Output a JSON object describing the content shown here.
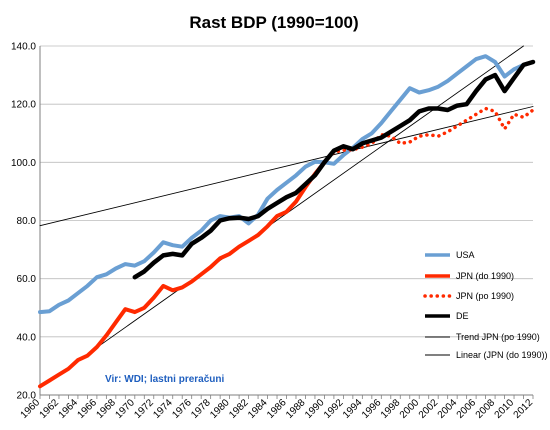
{
  "chart_data": {
    "type": "line",
    "title": "Rast BDP (1990=100)",
    "source_note": "Vir: WDI; lastni preračuni",
    "ylim": [
      20,
      140
    ],
    "yticks": [
      "20.0",
      "40.0",
      "60.0",
      "80.0",
      "100.0",
      "120.0",
      "140.0"
    ],
    "xlim": [
      1960,
      2012
    ],
    "xticks": [
      "1960",
      "1962",
      "1964",
      "1966",
      "1968",
      "1970",
      "1972",
      "1974",
      "1976",
      "1978",
      "1980",
      "1982",
      "1984",
      "1986",
      "1988",
      "1990",
      "1992",
      "1994",
      "1996",
      "1998",
      "2000",
      "2002",
      "2004",
      "2006",
      "2008",
      "2010",
      "2012"
    ],
    "grid": true,
    "legend_position": "right",
    "series": [
      {
        "name": "USA",
        "color": "#6a9fd3",
        "style": "solid",
        "points": [
          [
            1960,
            48.5
          ],
          [
            1961,
            48.8
          ],
          [
            1962,
            51
          ],
          [
            1963,
            52.5
          ],
          [
            1964,
            55
          ],
          [
            1965,
            57.5
          ],
          [
            1966,
            60.5
          ],
          [
            1967,
            61.5
          ],
          [
            1968,
            63.5
          ],
          [
            1969,
            65
          ],
          [
            1970,
            64.5
          ],
          [
            1971,
            66
          ],
          [
            1972,
            69
          ],
          [
            1973,
            72.5
          ],
          [
            1974,
            71.5
          ],
          [
            1975,
            71
          ],
          [
            1976,
            74
          ],
          [
            1977,
            76.5
          ],
          [
            1978,
            80
          ],
          [
            1979,
            81.5
          ],
          [
            1980,
            81
          ],
          [
            1981,
            81.5
          ],
          [
            1982,
            79
          ],
          [
            1983,
            82
          ],
          [
            1984,
            87.5
          ],
          [
            1985,
            90.5
          ],
          [
            1986,
            93
          ],
          [
            1987,
            95.5
          ],
          [
            1988,
            98.5
          ],
          [
            1989,
            100.2
          ],
          [
            1990,
            100
          ],
          [
            1991,
            99.5
          ],
          [
            1992,
            102.5
          ],
          [
            1993,
            105
          ],
          [
            1994,
            108
          ],
          [
            1995,
            110
          ],
          [
            1996,
            113.5
          ],
          [
            1997,
            117.5
          ],
          [
            1998,
            121.5
          ],
          [
            1999,
            125.5
          ],
          [
            2000,
            124
          ],
          [
            2001,
            124.8
          ],
          [
            2002,
            126
          ],
          [
            2003,
            128
          ],
          [
            2004,
            130.5
          ],
          [
            2005,
            133
          ],
          [
            2006,
            135.5
          ],
          [
            2007,
            136.5
          ],
          [
            2008,
            134.5
          ],
          [
            2009,
            129.5
          ],
          [
            2010,
            132
          ],
          [
            2011,
            133.5
          ],
          [
            2012,
            134.5
          ]
        ]
      },
      {
        "name": "JPN (do 1990)",
        "color": "#ff2a00",
        "style": "solid",
        "points": [
          [
            1960,
            23
          ],
          [
            1961,
            25
          ],
          [
            1962,
            27
          ],
          [
            1963,
            29
          ],
          [
            1964,
            32
          ],
          [
            1965,
            33.5
          ],
          [
            1966,
            36.5
          ],
          [
            1967,
            40.5
          ],
          [
            1968,
            45
          ],
          [
            1969,
            49.5
          ],
          [
            1970,
            48.5
          ],
          [
            1971,
            50
          ],
          [
            1972,
            53.5
          ],
          [
            1973,
            57.5
          ],
          [
            1974,
            56
          ],
          [
            1975,
            57
          ],
          [
            1976,
            59
          ],
          [
            1977,
            61.5
          ],
          [
            1978,
            64
          ],
          [
            1979,
            67
          ],
          [
            1980,
            68.5
          ],
          [
            1981,
            71
          ],
          [
            1982,
            73
          ],
          [
            1983,
            75
          ],
          [
            1984,
            78
          ],
          [
            1985,
            81.5
          ],
          [
            1986,
            83
          ],
          [
            1987,
            86.5
          ],
          [
            1988,
            91.5
          ],
          [
            1989,
            96
          ],
          [
            1990,
            100
          ]
        ]
      },
      {
        "name": "JPN (po 1990)",
        "color": "#ff2a00",
        "style": "dotted",
        "points": [
          [
            1990,
            100
          ],
          [
            1991,
            103.5
          ],
          [
            1992,
            104.2
          ],
          [
            1993,
            104.3
          ],
          [
            1994,
            105.2
          ],
          [
            1995,
            106.5
          ],
          [
            1996,
            109.5
          ],
          [
            1997,
            109
          ],
          [
            1998,
            106.5
          ],
          [
            1999,
            107
          ],
          [
            2000,
            109
          ],
          [
            2001,
            109.5
          ],
          [
            2002,
            109
          ],
          [
            2003,
            110.5
          ],
          [
            2004,
            112.5
          ],
          [
            2005,
            114.5
          ],
          [
            2006,
            116.5
          ],
          [
            2007,
            118.5
          ],
          [
            2008,
            117.5
          ],
          [
            2009,
            111.5
          ],
          [
            2010,
            116.5
          ],
          [
            2011,
            115.5
          ],
          [
            2012,
            118
          ]
        ]
      },
      {
        "name": "DE",
        "color": "#000000",
        "style": "solid-thick",
        "points": [
          [
            1970,
            60.5
          ],
          [
            1971,
            62.5
          ],
          [
            1972,
            65.5
          ],
          [
            1973,
            68
          ],
          [
            1974,
            68.5
          ],
          [
            1975,
            68
          ],
          [
            1976,
            72
          ],
          [
            1977,
            74
          ],
          [
            1978,
            76.5
          ],
          [
            1979,
            80
          ],
          [
            1980,
            80.8
          ],
          [
            1981,
            81
          ],
          [
            1982,
            80.5
          ],
          [
            1983,
            81.5
          ],
          [
            1984,
            84
          ],
          [
            1985,
            86
          ],
          [
            1986,
            88
          ],
          [
            1987,
            89.5
          ],
          [
            1988,
            92.5
          ],
          [
            1989,
            95.5
          ],
          [
            1990,
            100
          ],
          [
            1991,
            104
          ],
          [
            1992,
            105.5
          ],
          [
            1993,
            104.5
          ],
          [
            1994,
            106.5
          ],
          [
            1995,
            107.5
          ],
          [
            1996,
            108.5
          ],
          [
            1997,
            110.5
          ],
          [
            1998,
            112.5
          ],
          [
            1999,
            114.5
          ],
          [
            2000,
            117.5
          ],
          [
            2001,
            118.5
          ],
          [
            2002,
            118.5
          ],
          [
            2003,
            118
          ],
          [
            2004,
            119.5
          ],
          [
            2005,
            120
          ],
          [
            2006,
            124.5
          ],
          [
            2007,
            128.5
          ],
          [
            2008,
            130
          ],
          [
            2009,
            124.5
          ],
          [
            2010,
            129
          ],
          [
            2011,
            133.5
          ],
          [
            2012,
            134.5
          ]
        ]
      },
      {
        "name": "Trend JPN (po 1990)",
        "color": "#000000",
        "style": "thin",
        "points": [
          [
            1960,
            78.2
          ],
          [
            2012,
            119.2
          ]
        ]
      },
      {
        "name": "Linear (JPN (do 1990))",
        "color": "#000000",
        "style": "thin",
        "points": [
          [
            1960,
            22.5
          ],
          [
            2011,
            140
          ]
        ]
      }
    ]
  }
}
